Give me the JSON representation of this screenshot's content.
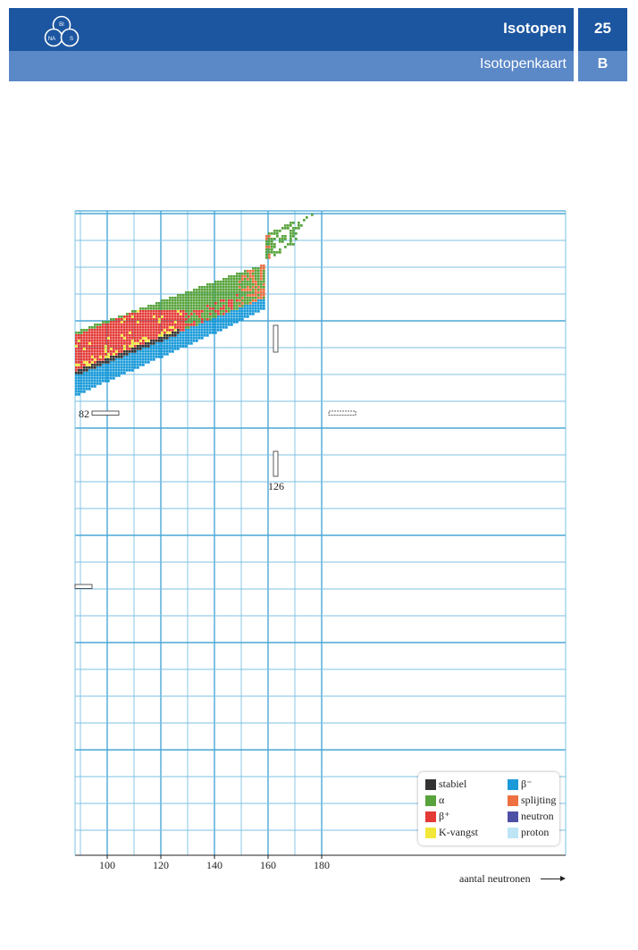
{
  "header": {
    "title": "Isotopen",
    "subtitle": "Isotopenkaart",
    "chapter": "25",
    "section": "B",
    "logo": {
      "top": "BI",
      "left": "NA",
      "right": "S"
    }
  },
  "chart_data": {
    "type": "heatmap",
    "title": "",
    "xlabel": "aantal neutronen",
    "x_ticks": [
      "100",
      "120",
      "140",
      "160",
      "180"
    ],
    "xlim": [
      88,
      180
    ],
    "magic_numbers": {
      "proton": "82",
      "neutron": "126"
    },
    "legend": [
      {
        "key": "stable",
        "label": "stabiel",
        "color": "#333333"
      },
      {
        "key": "bminus",
        "label": "β⁻",
        "color": "#1a9ad9"
      },
      {
        "key": "alpha",
        "label": "α",
        "color": "#58a33c"
      },
      {
        "key": "fission",
        "label": "splijting",
        "color": "#ee7040"
      },
      {
        "key": "bplus",
        "label": "β⁺",
        "color": "#e43a36"
      },
      {
        "key": "neutron",
        "label": "neutron",
        "color": "#4e50a6"
      },
      {
        "key": "kcapture",
        "label": "K-vangst",
        "color": "#f3e73a"
      },
      {
        "key": "proton",
        "label": "proton",
        "color": "#bde5f5"
      }
    ],
    "grid": true
  }
}
